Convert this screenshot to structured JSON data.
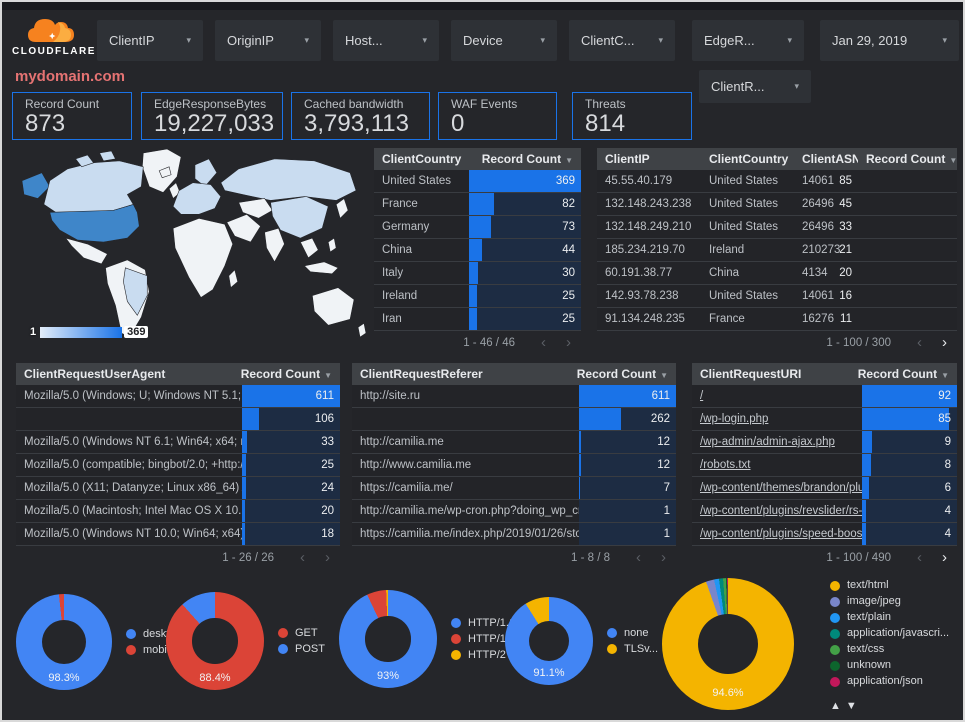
{
  "header": {
    "brand": "CLOUDFLARE",
    "domain": "mydomain.com",
    "filters": [
      {
        "label": "ClientIP"
      },
      {
        "label": "OriginIP"
      },
      {
        "label": "Host..."
      },
      {
        "label": "Device"
      },
      {
        "label": "ClientC..."
      },
      {
        "label": "EdgeR..."
      },
      {
        "label": "Jan 29, 2019"
      }
    ],
    "filter_row2": {
      "label": "ClientR..."
    }
  },
  "icons": {
    "caret_down": "▾",
    "sort_desc": "▼",
    "chevron_left": "‹",
    "chevron_right": "›",
    "arrow_up": "▲",
    "arrow_down": "▼"
  },
  "scorecards": [
    {
      "label": "Record Count",
      "value": "873"
    },
    {
      "label": "EdgeResponseBytes",
      "value": "19,227,033"
    },
    {
      "label": "Cached bandwidth",
      "value": "3,793,113"
    },
    {
      "label": "WAF Events",
      "value": "0"
    },
    {
      "label": "Threats",
      "value": "814"
    }
  ],
  "map": {
    "legend_min": "1",
    "legend_max": "369"
  },
  "tables": {
    "client_country": {
      "cols": [
        "ClientCountry",
        "Record Count"
      ],
      "pagination": "1 - 46 / 46",
      "rows": [
        {
          "label": "United States",
          "value": "369",
          "bar_pct": 100
        },
        {
          "label": "France",
          "value": "82",
          "bar_pct": 22
        },
        {
          "label": "Germany",
          "value": "73",
          "bar_pct": 20
        },
        {
          "label": "China",
          "value": "44",
          "bar_pct": 12
        },
        {
          "label": "Italy",
          "value": "30",
          "bar_pct": 8
        },
        {
          "label": "Ireland",
          "value": "25",
          "bar_pct": 7
        },
        {
          "label": "Iran",
          "value": "25",
          "bar_pct": 7
        }
      ]
    },
    "client_ip": {
      "cols": [
        "ClientIP",
        "ClientCountry",
        "ClientASN",
        "Record Count"
      ],
      "pagination": "1 - 100 / 300",
      "rows": [
        {
          "ip": "45.55.40.179",
          "country": "United States",
          "asn": "14061",
          "value": "85",
          "bar_pct": 100
        },
        {
          "ip": "132.148.243.238",
          "country": "United States",
          "asn": "26496",
          "value": "45",
          "bar_pct": 53
        },
        {
          "ip": "132.148.249.210",
          "country": "United States",
          "asn": "26496",
          "value": "33",
          "bar_pct": 39
        },
        {
          "ip": "185.234.219.70",
          "country": "Ireland",
          "asn": "210273",
          "value": "21",
          "bar_pct": 25
        },
        {
          "ip": "60.191.38.77",
          "country": "China",
          "asn": "4134",
          "value": "20",
          "bar_pct": 24
        },
        {
          "ip": "142.93.78.238",
          "country": "United States",
          "asn": "14061",
          "value": "16",
          "bar_pct": 19
        },
        {
          "ip": "91.134.248.235",
          "country": "France",
          "asn": "16276",
          "value": "11",
          "bar_pct": 13
        }
      ]
    },
    "user_agent": {
      "cols": [
        "ClientRequestUserAgent",
        "Record Count"
      ],
      "pagination": "1 - 26 / 26",
      "rows": [
        {
          "label": "Mozilla/5.0 (Windows; U; Windows NT 5.1; en-U...",
          "value": "611",
          "bar_pct": 100
        },
        {
          "label": "",
          "value": "106",
          "bar_pct": 17
        },
        {
          "label": "Mozilla/5.0 (Windows NT 6.1; Win64; x64; rv:64...",
          "value": "33",
          "bar_pct": 5
        },
        {
          "label": "Mozilla/5.0 (compatible; bingbot/2.0; +http://w...",
          "value": "25",
          "bar_pct": 4
        },
        {
          "label": "Mozilla/5.0 (X11; Datanyze; Linux x86_64) Appl...",
          "value": "24",
          "bar_pct": 4
        },
        {
          "label": "Mozilla/5.0 (Macintosh; Intel Mac OS X 10.11; r...",
          "value": "20",
          "bar_pct": 3
        },
        {
          "label": "Mozilla/5.0 (Windows NT 10.0; Win64; x64) App...",
          "value": "18",
          "bar_pct": 3
        }
      ]
    },
    "referer": {
      "cols": [
        "ClientRequestReferer",
        "Record Count"
      ],
      "pagination": "1 - 8 / 8",
      "rows": [
        {
          "label": "http://site.ru",
          "value": "611",
          "bar_pct": 100
        },
        {
          "label": "",
          "value": "262",
          "bar_pct": 43
        },
        {
          "label": "http://camilia.me",
          "value": "12",
          "bar_pct": 2
        },
        {
          "label": "http://www.camilia.me",
          "value": "12",
          "bar_pct": 2
        },
        {
          "label": "https://camilia.me/",
          "value": "7",
          "bar_pct": 1
        },
        {
          "label": "http://camilia.me/wp-cron.php?doing_wp_cron...",
          "value": "1",
          "bar_pct": 0
        },
        {
          "label": "https://camilia.me/index.php/2019/01/26/stor...",
          "value": "1",
          "bar_pct": 0
        }
      ]
    },
    "uri": {
      "cols": [
        "ClientRequestURI",
        "Record Count"
      ],
      "pagination": "1 - 100 / 490",
      "rows": [
        {
          "label": "/",
          "value": "92",
          "bar_pct": 100
        },
        {
          "label": "/wp-login.php",
          "value": "85",
          "bar_pct": 92
        },
        {
          "label": "/wp-admin/admin-ajax.php",
          "value": "9",
          "bar_pct": 10
        },
        {
          "label": "/robots.txt",
          "value": "8",
          "bar_pct": 9
        },
        {
          "label": "/wp-content/themes/brandon/plu...",
          "value": "6",
          "bar_pct": 7
        },
        {
          "label": "/wp-content/plugins/revslider/rs-p...",
          "value": "4",
          "bar_pct": 4
        },
        {
          "label": "/wp-content/plugins/speed-booste...",
          "value": "4",
          "bar_pct": 4
        }
      ]
    }
  },
  "donuts": [
    {
      "name": "device-type",
      "pct_label": "98.3%",
      "segments": [
        {
          "name": "deskt...",
          "color": "#4285f4",
          "pct": 98.3
        },
        {
          "name": "mobile",
          "color": "#db4437",
          "pct": 1.7
        }
      ]
    },
    {
      "name": "request-method",
      "pct_label": "88.4%",
      "segments": [
        {
          "name": "GET",
          "color": "#db4437",
          "pct": 88.4
        },
        {
          "name": "POST",
          "color": "#4285f4",
          "pct": 11.6
        }
      ]
    },
    {
      "name": "http-protocol",
      "pct_label": "93%",
      "segments": [
        {
          "name": "HTTP/1.1",
          "color": "#4285f4",
          "pct": 93
        },
        {
          "name": "HTTP/1.0",
          "color": "#db4437",
          "pct": 6.4
        },
        {
          "name": "HTTP/2",
          "color": "#f4b400",
          "pct": 0.6
        }
      ]
    },
    {
      "name": "tls-version",
      "pct_label": "91.1%",
      "segments": [
        {
          "name": "none",
          "color": "#4285f4",
          "pct": 91.1
        },
        {
          "name": "TLSv...",
          "color": "#f4b400",
          "pct": 8.9
        }
      ]
    },
    {
      "name": "content-type",
      "pct_label": "94.6%",
      "segments": [
        {
          "name": "text/html",
          "color": "#f4b400",
          "pct": 94.6
        },
        {
          "name": "image/jpeg",
          "color": "#7986cb",
          "pct": 2.0
        },
        {
          "name": "text/plain",
          "color": "#2196f3",
          "pct": 1.2
        },
        {
          "name": "application/javascri...",
          "color": "#00897b",
          "pct": 1.0
        },
        {
          "name": "text/css",
          "color": "#43a047",
          "pct": 0.7
        },
        {
          "name": "unknown",
          "color": "#0d652d",
          "pct": 0.3
        },
        {
          "name": "application/json",
          "color": "#c2185b",
          "pct": 0.2
        }
      ]
    }
  ]
}
